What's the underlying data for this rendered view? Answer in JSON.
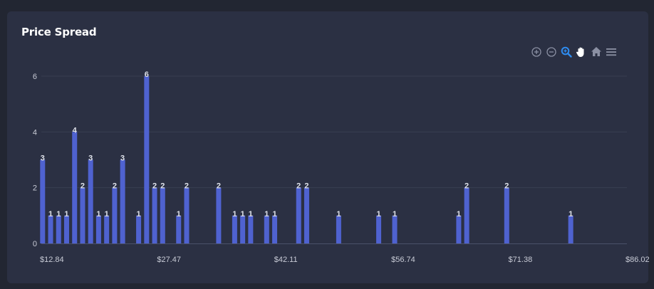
{
  "card": {
    "title": "Price Spread"
  },
  "colors": {
    "bar": "#4f62d0",
    "grid": "#383e52",
    "axis": "#4a5068",
    "tool": "#8b90a3",
    "tool_active": "#2e8cf0"
  },
  "toolbar": {
    "icons": [
      "zoom-in-icon",
      "zoom-out-icon",
      "selection-zoom-icon",
      "pan-hand-icon",
      "home-reset-icon",
      "menu-icon"
    ],
    "active": "selection-zoom-icon"
  },
  "chart_data": {
    "type": "bar",
    "title": "Price Spread",
    "xlabel": "",
    "ylabel": "",
    "xlim": [
      12.84,
      86.02
    ],
    "ylim": [
      0,
      6
    ],
    "x_tick_labels": [
      "$12.84",
      "$27.47",
      "$42.11",
      "$56.74",
      "$71.38",
      "$86.02"
    ],
    "x_tick_values": [
      12.84,
      27.47,
      42.11,
      56.74,
      71.38,
      86.02
    ],
    "y_ticks": [
      0,
      2,
      4,
      6
    ],
    "grid": true,
    "data_labels": true,
    "x": [
      13.0,
      14.0,
      15.0,
      16.0,
      17.0,
      18.0,
      19.0,
      20.0,
      21.0,
      22.0,
      23.0,
      25.0,
      26.0,
      27.0,
      28.0,
      30.0,
      31.0,
      35.0,
      37.0,
      38.0,
      39.0,
      41.0,
      42.0,
      45.0,
      46.0,
      50.0,
      55.0,
      57.0,
      65.0,
      66.0,
      71.0,
      79.0
    ],
    "values": [
      3,
      1,
      1,
      1,
      4,
      2,
      3,
      1,
      1,
      2,
      3,
      1,
      6,
      2,
      2,
      1,
      2,
      2,
      1,
      1,
      1,
      1,
      1,
      2,
      2,
      1,
      1,
      1,
      1,
      2,
      2,
      1
    ]
  }
}
